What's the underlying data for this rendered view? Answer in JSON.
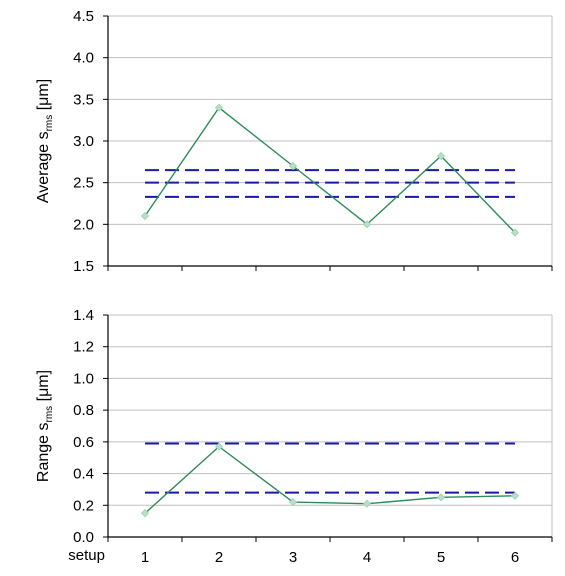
{
  "chart_data": [
    {
      "type": "line",
      "ylabel_main": "Average s",
      "ylabel_sub": "rms",
      "ylabel_unit": " [μm]",
      "ylim": [
        1.5,
        4.5
      ],
      "yticks": [
        "1.5",
        "2.0",
        "2.5",
        "3.0",
        "3.5",
        "4.0",
        "4.5"
      ],
      "x": [
        1,
        2,
        3,
        4,
        5,
        6
      ],
      "series": [
        {
          "values": [
            2.1,
            3.4,
            2.7,
            2.0,
            2.82,
            1.9
          ]
        }
      ],
      "reference_lines": [
        2.65,
        2.5,
        2.33
      ],
      "grid": true,
      "line_color": "#2e8b57",
      "marker_color": "#b8e0c8",
      "reference_color": "#1a1aaa"
    },
    {
      "type": "line",
      "ylabel_main": "Range s",
      "ylabel_sub": "rms",
      "ylabel_unit": "  [μm]",
      "ylim": [
        0.0,
        1.4
      ],
      "yticks": [
        "0.0",
        "0.2",
        "0.4",
        "0.6",
        "0.8",
        "1.0",
        "1.2",
        "1.4"
      ],
      "x": [
        1,
        2,
        3,
        4,
        5,
        6
      ],
      "xlabel": "setup",
      "xticks": [
        "1",
        "2",
        "3",
        "4",
        "5",
        "6"
      ],
      "series": [
        {
          "values": [
            0.15,
            0.57,
            0.22,
            0.21,
            0.25,
            0.26
          ]
        }
      ],
      "reference_lines": [
        0.59,
        0.28
      ],
      "grid": true,
      "line_color": "#2e8b57",
      "marker_color": "#b8e0c8",
      "reference_color": "#1a1aaa"
    }
  ]
}
